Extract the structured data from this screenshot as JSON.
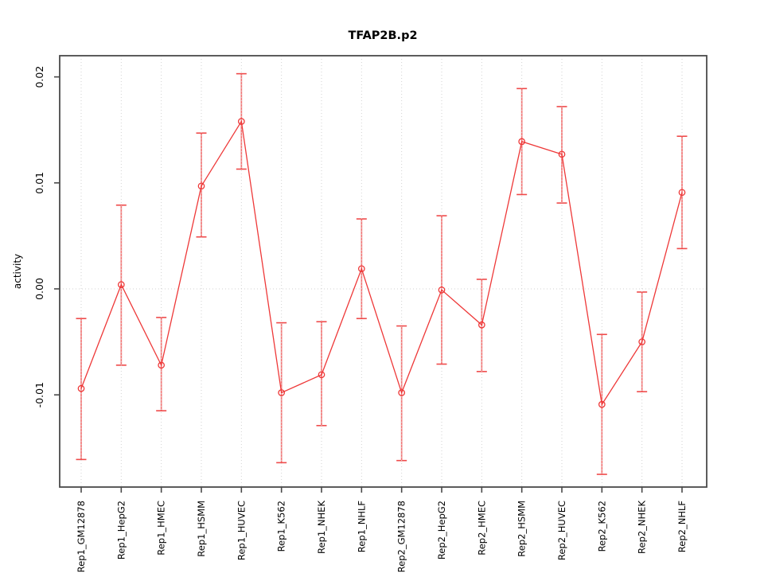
{
  "figure": {
    "title": "TFAP2B.p2",
    "y_axis_label": "activity"
  },
  "chart_data": {
    "type": "line",
    "title": "TFAP2B.p2",
    "xlabel": "",
    "ylabel": "activity",
    "legend_position": "none",
    "marker": "open-circle",
    "grid": {
      "vertical": "dotted line at every category",
      "horizontal": "dotted line at y=0 only"
    },
    "categories": [
      "Rep1_GM12878",
      "Rep1_HepG2",
      "Rep1_HMEC",
      "Rep1_HSMM",
      "Rep1_HUVEC",
      "Rep1_K562",
      "Rep1_NHEK",
      "Rep1_NHLF",
      "Rep2_GM12878",
      "Rep2_HepG2",
      "Rep2_HMEC",
      "Rep2_HSMM",
      "Rep2_HUVEC",
      "Rep2_K562",
      "Rep2_NHEK",
      "Rep2_NHLF"
    ],
    "series": [
      {
        "name": "TFAP2B.p2 activity",
        "values": [
          -0.0094,
          0.0004,
          -0.0072,
          0.0097,
          0.0158,
          -0.0098,
          -0.0081,
          0.0019,
          -0.0098,
          -0.0001,
          -0.0034,
          0.0139,
          0.0127,
          -0.0109,
          -0.005,
          0.0091
        ],
        "upper": [
          -0.0028,
          0.0079,
          -0.0027,
          0.0147,
          0.0203,
          -0.0032,
          -0.0031,
          0.0066,
          -0.0035,
          0.0069,
          0.0009,
          0.0189,
          0.0172,
          -0.0043,
          -0.0003,
          0.0144
        ],
        "lower": [
          -0.0161,
          -0.0072,
          -0.0115,
          0.0049,
          0.0113,
          -0.0164,
          -0.0129,
          -0.0028,
          -0.0162,
          -0.0071,
          -0.0078,
          0.0089,
          0.0081,
          -0.0175,
          -0.0097,
          0.0038
        ]
      }
    ],
    "yticks": {
      "values": [
        -0.01,
        0.0,
        0.01,
        0.02
      ],
      "labels": [
        "-0.01",
        "0.00",
        "0.01",
        "0.02"
      ]
    },
    "ylim": [
      -0.0187,
      0.022
    ],
    "colors": {
      "line": "#ee3838",
      "errorbar": "#f26060",
      "errorbar_cap": "#ef4a4a",
      "grid": "#d2d2d2",
      "axis_box": "#4a4a4a",
      "text": "#000000",
      "background": "#ffffff"
    }
  }
}
